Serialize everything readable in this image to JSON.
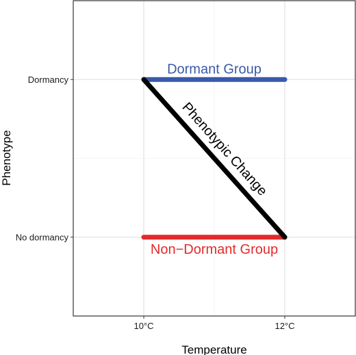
{
  "chart_data": {
    "type": "line",
    "title": "",
    "xlabel": "Temperature",
    "ylabel": "Phenotype",
    "x_categories": [
      "10°C",
      "12°C"
    ],
    "y_categories": [
      "No dormancy",
      "Dormancy"
    ],
    "xlim": [
      0.5,
      2.5
    ],
    "ylim": [
      0.5,
      2.5
    ],
    "grid": true,
    "series": [
      {
        "name": "Dormant Group",
        "color": "#3a59a9",
        "x": [
          "10°C",
          "12°C"
        ],
        "y": [
          "Dormancy",
          "Dormancy"
        ]
      },
      {
        "name": "Non−Dormant Group",
        "color": "#e32a2a",
        "x": [
          "10°C",
          "12°C"
        ],
        "y": [
          "No dormancy",
          "No dormancy"
        ]
      },
      {
        "name": "Phenotypic Change",
        "color": "#000000",
        "x": [
          "10°C",
          "12°C"
        ],
        "y": [
          "Dormancy",
          "No dormancy"
        ]
      }
    ],
    "annotations": [
      {
        "text": "Dormant Group",
        "series": 0,
        "color": "#3a59a9"
      },
      {
        "text": "Non−Dormant Group",
        "series": 1,
        "color": "#e32a2a"
      },
      {
        "text": "Phenotypic Change",
        "series": 2,
        "color": "#000000"
      }
    ]
  }
}
